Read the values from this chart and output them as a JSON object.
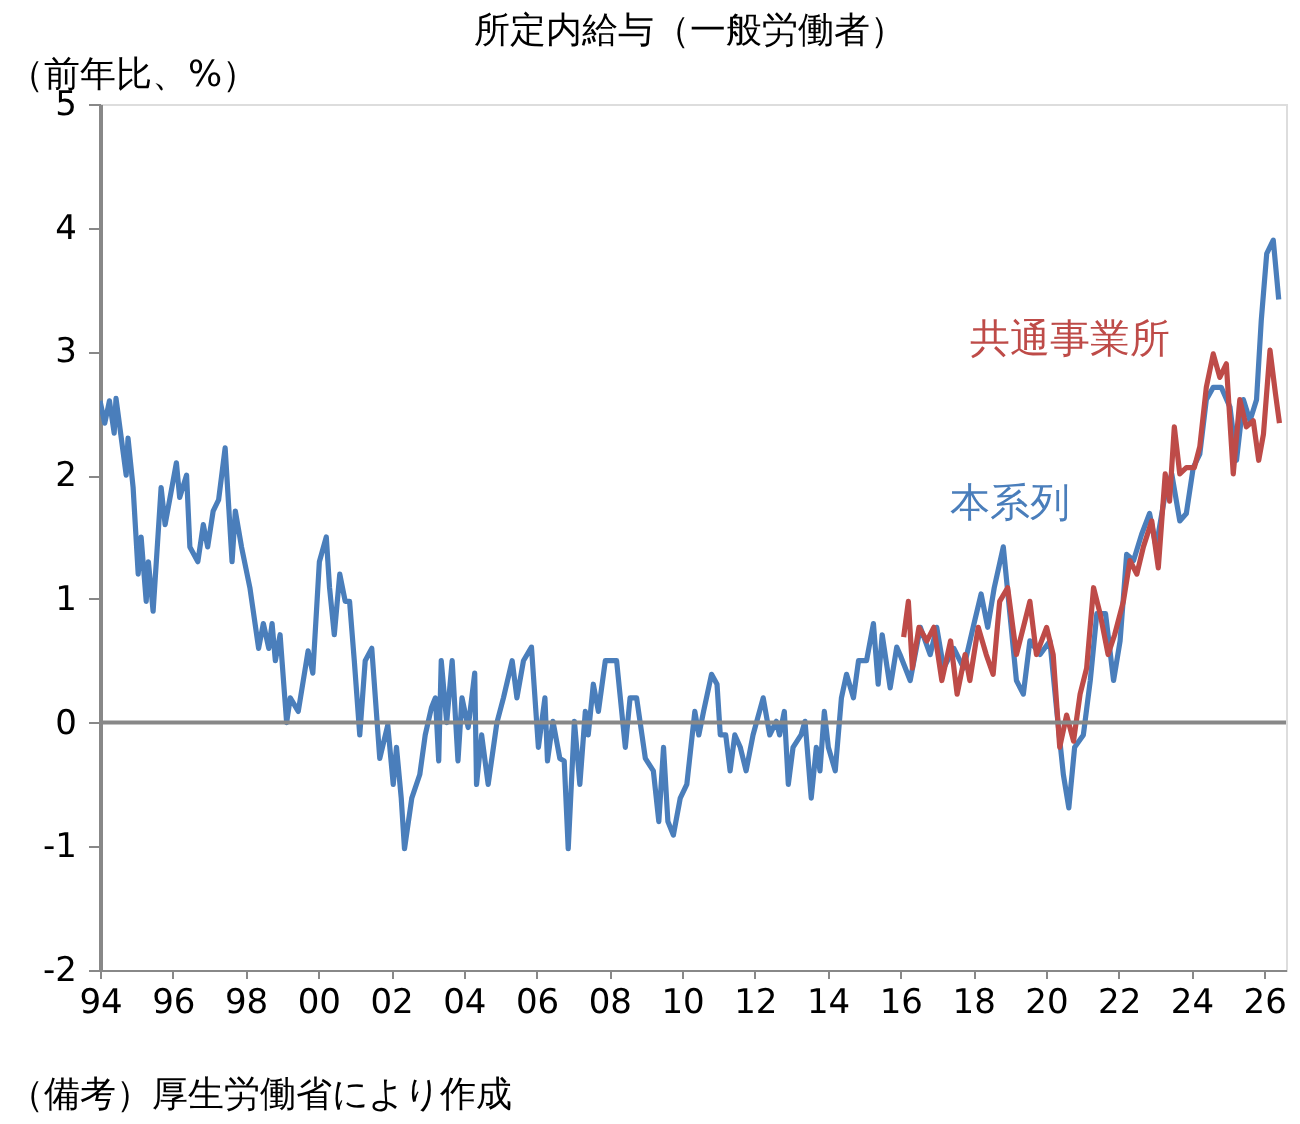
{
  "chart_data": {
    "type": "line",
    "title": "所定内給与（一般労働者）",
    "ylabel": "（前年比、%）",
    "annotations": [
      "（備考）厚生労働省により作成"
    ],
    "xlim": [
      1994.0,
      2026.6
    ],
    "xticks": [
      {
        "value": 1994,
        "label": "94"
      },
      {
        "value": 1996,
        "label": "96"
      },
      {
        "value": 1998,
        "label": "98"
      },
      {
        "value": 2000,
        "label": "00"
      },
      {
        "value": 2002,
        "label": "02"
      },
      {
        "value": 2004,
        "label": "04"
      },
      {
        "value": 2006,
        "label": "06"
      },
      {
        "value": 2008,
        "label": "08"
      },
      {
        "value": 2010,
        "label": "10"
      },
      {
        "value": 2012,
        "label": "12"
      },
      {
        "value": 2014,
        "label": "14"
      },
      {
        "value": 2016,
        "label": "16"
      },
      {
        "value": 2018,
        "label": "18"
      },
      {
        "value": 2020,
        "label": "20"
      },
      {
        "value": 2022,
        "label": "22"
      },
      {
        "value": 2024,
        "label": "24"
      },
      {
        "value": 2026,
        "label": "26"
      }
    ],
    "ylim": [
      -2,
      5
    ],
    "yticks": [
      -2,
      -1,
      0,
      1,
      2,
      3,
      4,
      5
    ],
    "grid": false,
    "legend": false,
    "ref_lines": [
      {
        "axis": "y",
        "value": 0,
        "color": "#888888"
      }
    ],
    "series": [
      {
        "name": "本系列",
        "color": "#4a7ebb",
        "x": [
          1994.0,
          1994.13,
          1994.26,
          1994.39,
          1994.44,
          1994.72,
          1994.77,
          1994.91,
          1995.05,
          1995.13,
          1995.27,
          1995.33,
          1995.46,
          1995.68,
          1995.79,
          1996.1,
          1996.19,
          1996.38,
          1996.47,
          1996.69,
          1996.84,
          1996.96,
          1997.11,
          1997.26,
          1997.44,
          1997.63,
          1997.72,
          1997.89,
          1998.12,
          1998.36,
          1998.49,
          1998.64,
          1998.73,
          1998.82,
          1998.95,
          1999.13,
          1999.23,
          1999.45,
          1999.72,
          1999.85,
          2000.03,
          2000.22,
          2000.31,
          2000.44,
          2000.59,
          2000.74,
          2000.86,
          2000.99,
          2001.14,
          2001.29,
          2001.47,
          2001.69,
          2001.91,
          2002.06,
          2002.15,
          2002.28,
          2002.37,
          2002.57,
          2002.79,
          2002.94,
          2003.11,
          2003.22,
          2003.31,
          2003.38,
          2003.53,
          2003.68,
          2003.84,
          2003.95,
          2004.12,
          2004.3,
          2004.35,
          2004.49,
          2004.67,
          2004.91,
          2005.09,
          2005.33,
          2005.46,
          2005.64,
          2005.86,
          2006.05,
          2006.23,
          2006.3,
          2006.45,
          2006.64,
          2006.76,
          2006.87,
          2007.04,
          2007.19,
          2007.34,
          2007.42,
          2007.56,
          2007.7,
          2007.89,
          2008.07,
          2008.2,
          2008.44,
          2008.57,
          2008.75,
          2008.99,
          2009.21,
          2009.36,
          2009.49,
          2009.61,
          2009.76,
          2009.95,
          2010.13,
          2010.35,
          2010.46,
          2010.59,
          2010.81,
          2010.96,
          2011.05,
          2011.2,
          2011.32,
          2011.45,
          2011.6,
          2011.76,
          2011.95,
          2012.23,
          2012.41,
          2012.59,
          2012.68,
          2012.81,
          2012.92,
          2013.05,
          2013.27,
          2013.38,
          2013.55,
          2013.69,
          2013.79,
          2013.91,
          2014.02,
          2014.21,
          2014.38,
          2014.52,
          2014.71,
          2014.85,
          2015.07,
          2015.26,
          2015.39,
          2015.5,
          2015.72,
          2015.9,
          2015.99,
          2016.27,
          2016.55,
          2016.82,
          2017.0,
          2017.19,
          2017.47,
          2017.74,
          2018.0,
          2018.22,
          2018.4,
          2018.58,
          2018.83,
          2019.01,
          2019.19,
          2019.38,
          2019.56,
          2019.84,
          2020.11,
          2020.29,
          2020.48,
          2020.63,
          2020.79,
          2021.03,
          2021.22,
          2021.4,
          2021.64,
          2021.86,
          2022.04,
          2022.22,
          2022.41,
          2022.63,
          2022.85,
          2023.03,
          2023.28,
          2023.46,
          2023.68,
          2023.86,
          2024.05,
          2024.23,
          2024.41,
          2024.6,
          2024.82,
          2025.06,
          2025.24,
          2025.43,
          2025.61,
          2025.79,
          2025.92,
          2026.07,
          2026.25,
          2026.4
        ],
        "values": [
          2.6,
          2.42,
          2.6,
          2.34,
          2.62,
          2.0,
          2.3,
          1.9,
          1.2,
          1.5,
          0.98,
          1.3,
          0.9,
          1.9,
          1.6,
          2.1,
          1.82,
          2.0,
          1.42,
          1.3,
          1.6,
          1.42,
          1.71,
          1.8,
          2.22,
          1.3,
          1.71,
          1.42,
          1.09,
          0.6,
          0.8,
          0.6,
          0.8,
          0.5,
          0.71,
          0.0,
          0.2,
          0.09,
          0.58,
          0.4,
          1.3,
          1.5,
          1.09,
          0.71,
          1.2,
          0.98,
          0.98,
          0.5,
          -0.1,
          0.5,
          0.6,
          -0.29,
          -0.02,
          -0.5,
          -0.2,
          -0.61,
          -1.02,
          -0.61,
          -0.42,
          -0.1,
          0.12,
          0.2,
          -0.31,
          0.5,
          0.0,
          0.5,
          -0.31,
          0.2,
          -0.04,
          0.4,
          -0.5,
          -0.1,
          -0.5,
          0.0,
          0.2,
          0.5,
          0.2,
          0.5,
          0.61,
          -0.2,
          0.2,
          -0.31,
          0.01,
          -0.29,
          -0.31,
          -1.02,
          0.01,
          -0.5,
          0.09,
          -0.1,
          0.31,
          0.09,
          0.5,
          0.5,
          0.5,
          -0.2,
          0.2,
          0.2,
          -0.29,
          -0.39,
          -0.8,
          -0.2,
          -0.8,
          -0.91,
          -0.61,
          -0.5,
          0.09,
          -0.1,
          0.09,
          0.39,
          0.31,
          -0.1,
          -0.1,
          -0.39,
          -0.1,
          -0.2,
          -0.39,
          -0.1,
          0.2,
          -0.1,
          0.01,
          -0.1,
          0.09,
          -0.5,
          -0.2,
          -0.1,
          0.01,
          -0.61,
          -0.2,
          -0.39,
          0.09,
          -0.2,
          -0.39,
          0.2,
          0.39,
          0.2,
          0.5,
          0.5,
          0.8,
          0.31,
          0.71,
          0.28,
          0.61,
          0.55,
          0.34,
          0.77,
          0.55,
          0.77,
          0.44,
          0.6,
          0.44,
          0.77,
          1.04,
          0.77,
          1.09,
          1.42,
          0.88,
          0.34,
          0.23,
          0.66,
          0.55,
          0.66,
          0.12,
          -0.42,
          -0.69,
          -0.2,
          -0.1,
          0.34,
          0.88,
          0.88,
          0.34,
          0.66,
          1.36,
          1.31,
          1.52,
          1.69,
          1.42,
          1.85,
          2.01,
          1.63,
          1.69,
          2.06,
          2.17,
          2.61,
          2.71,
          2.71,
          2.55,
          2.12,
          2.61,
          2.44,
          2.61,
          3.25,
          3.79,
          3.9,
          3.42
        ]
      },
      {
        "name": "共通事業所",
        "color": "#be4b48",
        "x": [
          2016.09,
          2016.22,
          2016.33,
          2016.51,
          2016.73,
          2016.92,
          2017.14,
          2017.38,
          2017.56,
          2017.78,
          2017.91,
          2018.14,
          2018.36,
          2018.55,
          2018.73,
          2018.95,
          2019.19,
          2019.38,
          2019.56,
          2019.74,
          2020.02,
          2020.2,
          2020.38,
          2020.57,
          2020.76,
          2020.94,
          2021.12,
          2021.31,
          2021.49,
          2021.71,
          2021.89,
          2022.13,
          2022.31,
          2022.5,
          2022.68,
          2022.91,
          2023.09,
          2023.28,
          2023.4,
          2023.53,
          2023.68,
          2023.86,
          2024.08,
          2024.23,
          2024.41,
          2024.6,
          2024.78,
          2024.96,
          2025.15,
          2025.33,
          2025.51,
          2025.7,
          2025.85,
          2025.98,
          2026.16,
          2026.31,
          2026.42
        ],
        "values": [
          0.69,
          0.98,
          0.44,
          0.77,
          0.66,
          0.77,
          0.34,
          0.66,
          0.23,
          0.55,
          0.34,
          0.77,
          0.55,
          0.39,
          0.98,
          1.09,
          0.55,
          0.77,
          0.98,
          0.55,
          0.77,
          0.55,
          -0.2,
          0.06,
          -0.15,
          0.23,
          0.44,
          1.09,
          0.88,
          0.55,
          0.71,
          0.98,
          1.31,
          1.2,
          1.42,
          1.63,
          1.25,
          2.01,
          1.79,
          2.39,
          2.01,
          2.06,
          2.06,
          2.23,
          2.71,
          2.98,
          2.79,
          2.9,
          2.01,
          2.61,
          2.39,
          2.44,
          2.12,
          2.33,
          3.01,
          2.66,
          2.42
        ]
      }
    ]
  }
}
